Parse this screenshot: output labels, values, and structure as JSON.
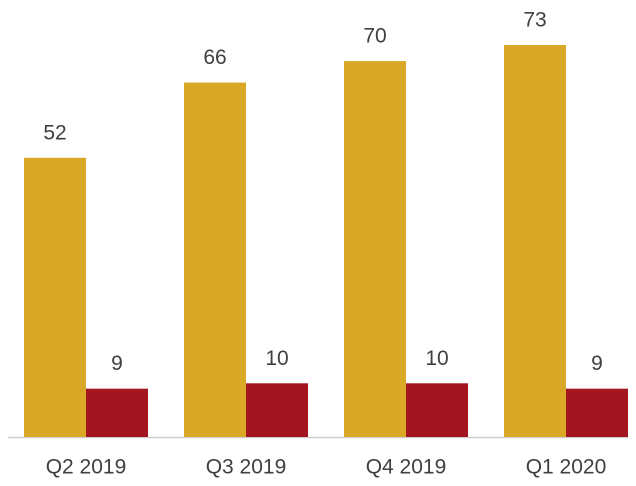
{
  "chart_data": {
    "type": "bar",
    "categories": [
      "Q2 2019",
      "Q3 2019",
      "Q4 2019",
      "Q1 2020"
    ],
    "series": [
      {
        "color": "#d9a826",
        "values": [
          52,
          66,
          70,
          73
        ]
      },
      {
        "color": "#a31621",
        "values": [
          9,
          10,
          10,
          9
        ]
      }
    ],
    "ylim": [
      0,
      73
    ]
  }
}
